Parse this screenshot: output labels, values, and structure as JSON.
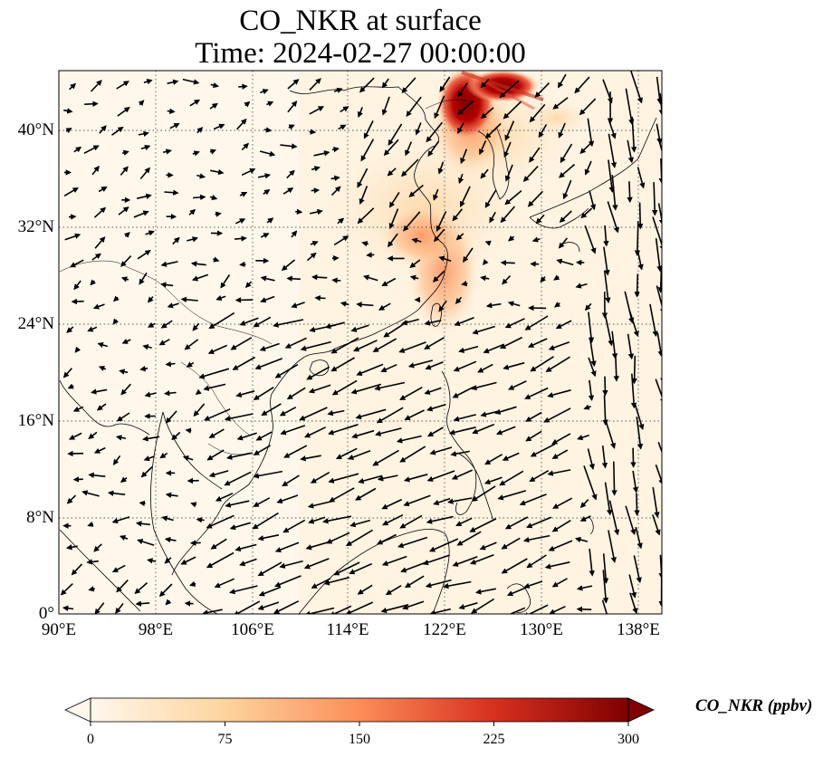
{
  "title_line1": "CO_NKR at surface",
  "title_line2": "Time: 2024-02-27 00:00:00",
  "map": {
    "projection": "PlateCarree",
    "lon_range": [
      90,
      141
    ],
    "lat_range": [
      0,
      45
    ],
    "gridlines": "dotted",
    "lon_ticks": [
      "90°E",
      "98°E",
      "106°E",
      "114°E",
      "122°E",
      "130°E",
      "138°E"
    ],
    "lat_ticks": [
      "0°",
      "8°N",
      "16°N",
      "24°N",
      "32°N",
      "40°N"
    ],
    "field": "CO_NKR concentration (ppbv), high plume over NE China / Yellow Sea, moderate along east China coast",
    "vectors": "surface wind arrows"
  },
  "colorbar": {
    "label": "CO_NKR (ppbv)",
    "ticks": [
      "0",
      "75",
      "150",
      "225",
      "300"
    ],
    "range": [
      0,
      300
    ],
    "colormap": "OrRd",
    "extend": "both",
    "colors": [
      "#fff7ec",
      "#fdd49e",
      "#fc8d59",
      "#d7301f",
      "#7f0000"
    ]
  }
}
